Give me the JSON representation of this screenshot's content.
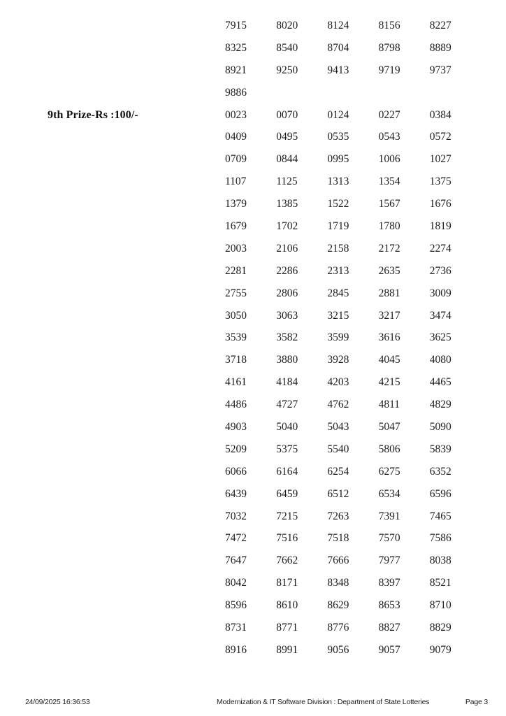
{
  "grid": {
    "rows": [
      {
        "label": "",
        "numbers": [
          "7915",
          "8020",
          "8124",
          "8156",
          "8227"
        ]
      },
      {
        "label": "",
        "numbers": [
          "8325",
          "8540",
          "8704",
          "8798",
          "8889"
        ]
      },
      {
        "label": "",
        "numbers": [
          "8921",
          "9250",
          "9413",
          "9719",
          "9737"
        ]
      },
      {
        "label": "",
        "numbers": [
          "9886"
        ]
      },
      {
        "label": "9th Prize-Rs :100/-",
        "numbers": [
          "0023",
          "0070",
          "0124",
          "0227",
          "0384"
        ]
      },
      {
        "label": "",
        "numbers": [
          "0409",
          "0495",
          "0535",
          "0543",
          "0572"
        ]
      },
      {
        "label": "",
        "numbers": [
          "0709",
          "0844",
          "0995",
          "1006",
          "1027"
        ]
      },
      {
        "label": "",
        "numbers": [
          "1107",
          "1125",
          "1313",
          "1354",
          "1375"
        ]
      },
      {
        "label": "",
        "numbers": [
          "1379",
          "1385",
          "1522",
          "1567",
          "1676"
        ]
      },
      {
        "label": "",
        "numbers": [
          "1679",
          "1702",
          "1719",
          "1780",
          "1819"
        ]
      },
      {
        "label": "",
        "numbers": [
          "2003",
          "2106",
          "2158",
          "2172",
          "2274"
        ]
      },
      {
        "label": "",
        "numbers": [
          "2281",
          "2286",
          "2313",
          "2635",
          "2736"
        ]
      },
      {
        "label": "",
        "numbers": [
          "2755",
          "2806",
          "2845",
          "2881",
          "3009"
        ]
      },
      {
        "label": "",
        "numbers": [
          "3050",
          "3063",
          "3215",
          "3217",
          "3474"
        ]
      },
      {
        "label": "",
        "numbers": [
          "3539",
          "3582",
          "3599",
          "3616",
          "3625"
        ]
      },
      {
        "label": "",
        "numbers": [
          "3718",
          "3880",
          "3928",
          "4045",
          "4080"
        ]
      },
      {
        "label": "",
        "numbers": [
          "4161",
          "4184",
          "4203",
          "4215",
          "4465"
        ]
      },
      {
        "label": "",
        "numbers": [
          "4486",
          "4727",
          "4762",
          "4811",
          "4829"
        ]
      },
      {
        "label": "",
        "numbers": [
          "4903",
          "5040",
          "5043",
          "5047",
          "5090"
        ]
      },
      {
        "label": "",
        "numbers": [
          "5209",
          "5375",
          "5540",
          "5806",
          "5839"
        ]
      },
      {
        "label": "",
        "numbers": [
          "6066",
          "6164",
          "6254",
          "6275",
          "6352"
        ]
      },
      {
        "label": "",
        "numbers": [
          "6439",
          "6459",
          "6512",
          "6534",
          "6596"
        ]
      },
      {
        "label": "",
        "numbers": [
          "7032",
          "7215",
          "7263",
          "7391",
          "7465"
        ]
      },
      {
        "label": "",
        "numbers": [
          "7472",
          "7516",
          "7518",
          "7570",
          "7586"
        ]
      },
      {
        "label": "",
        "numbers": [
          "7647",
          "7662",
          "7666",
          "7977",
          "8038"
        ]
      },
      {
        "label": "",
        "numbers": [
          "8042",
          "8171",
          "8348",
          "8397",
          "8521"
        ]
      },
      {
        "label": "",
        "numbers": [
          "8596",
          "8610",
          "8629",
          "8653",
          "8710"
        ]
      },
      {
        "label": "",
        "numbers": [
          "8731",
          "8771",
          "8776",
          "8827",
          "8829"
        ]
      },
      {
        "label": "",
        "numbers": [
          "8916",
          "8991",
          "9056",
          "9057",
          "9079"
        ]
      }
    ]
  },
  "footer": {
    "timestamp": "24/09/2025 16:36:53",
    "division": "Modernization & IT Software Division : Department of State Lotteries",
    "page_label": "Page 3"
  }
}
